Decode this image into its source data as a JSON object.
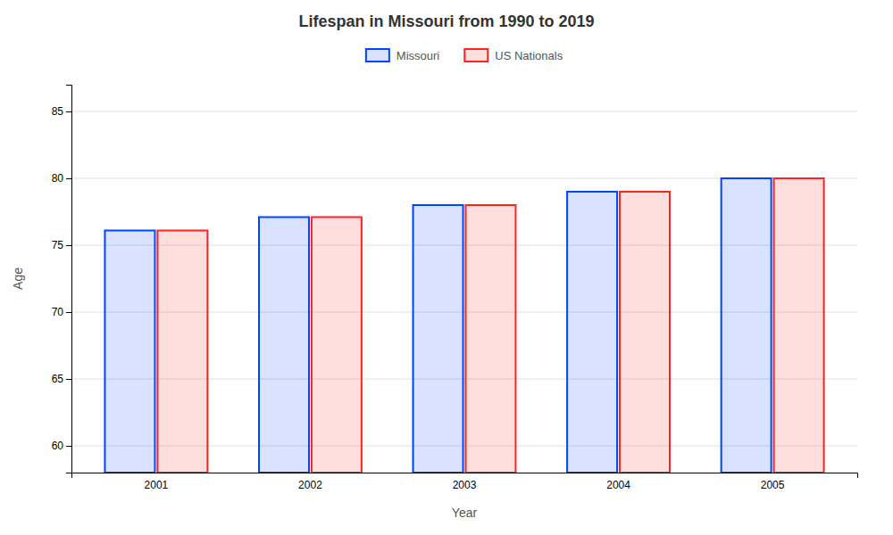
{
  "chart_data": {
    "type": "bar",
    "title": "Lifespan in Missouri from 1990 to 2019",
    "xlabel": "Year",
    "ylabel": "Age",
    "categories": [
      "2001",
      "2002",
      "2003",
      "2004",
      "2005"
    ],
    "series": [
      {
        "name": "Missouri",
        "color": "#0044ff",
        "values": [
          76.1,
          77.1,
          78.0,
          79.0,
          80.0
        ]
      },
      {
        "name": "US Nationals",
        "color": "#ff2222",
        "values": [
          76.1,
          77.1,
          78.0,
          79.0,
          80.0
        ]
      }
    ],
    "ylim": [
      58,
      87
    ],
    "yticks": [
      60,
      65,
      70,
      75,
      80,
      85
    ],
    "grid": true,
    "legend": "top"
  }
}
